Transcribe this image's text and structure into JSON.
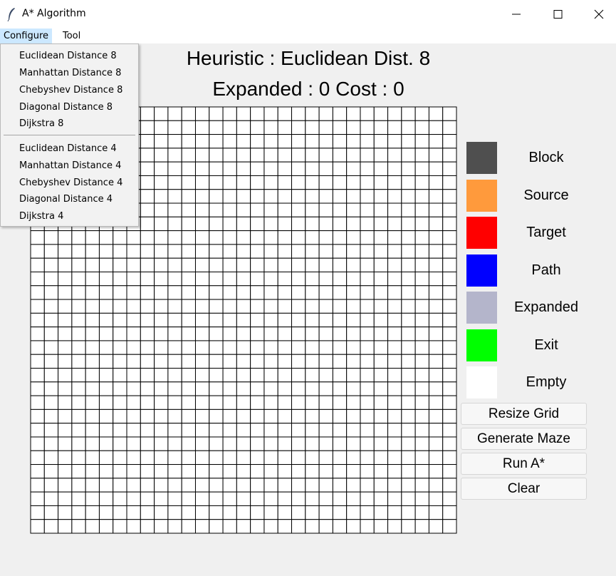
{
  "window": {
    "title": "A* Algorithm",
    "icon": "feather-icon",
    "controls": [
      "minimize-icon",
      "maximize-icon",
      "close-icon"
    ]
  },
  "menubar": {
    "configure": "Configure",
    "tool": "Tool"
  },
  "header": {
    "heuristic_text": "Heuristic : Euclidean Dist. 8",
    "stats_text": "Expanded : 0 Cost : 0"
  },
  "grid": {
    "rows": 31,
    "cols": 31,
    "cell_state": "Empty"
  },
  "legend": [
    {
      "label": "Block",
      "color": "#4f4f4f"
    },
    {
      "label": "Source",
      "color": "#ff9a3c"
    },
    {
      "label": "Target",
      "color": "#ff0000"
    },
    {
      "label": "Path",
      "color": "#0000ff"
    },
    {
      "label": "Expanded",
      "color": "#b4b5cb"
    },
    {
      "label": "Exit",
      "color": "#00ff00"
    },
    {
      "label": "Empty",
      "color": "#ffffff"
    }
  ],
  "buttons": {
    "resize": "Resize Grid",
    "generate": "Generate Maze",
    "run": "Run A*",
    "clear": "Clear"
  },
  "configure_menu": {
    "group8": [
      "Euclidean Distance 8",
      "Manhattan Distance 8",
      "Chebyshev Distance 8",
      "Diagonal Distance 8",
      "Dijkstra 8"
    ],
    "group4": [
      "Euclidean Distance 4",
      "Manhattan Distance 4",
      "Chebyshev Distance 4",
      "Diagonal Distance 4",
      "Dijkstra 4"
    ]
  }
}
